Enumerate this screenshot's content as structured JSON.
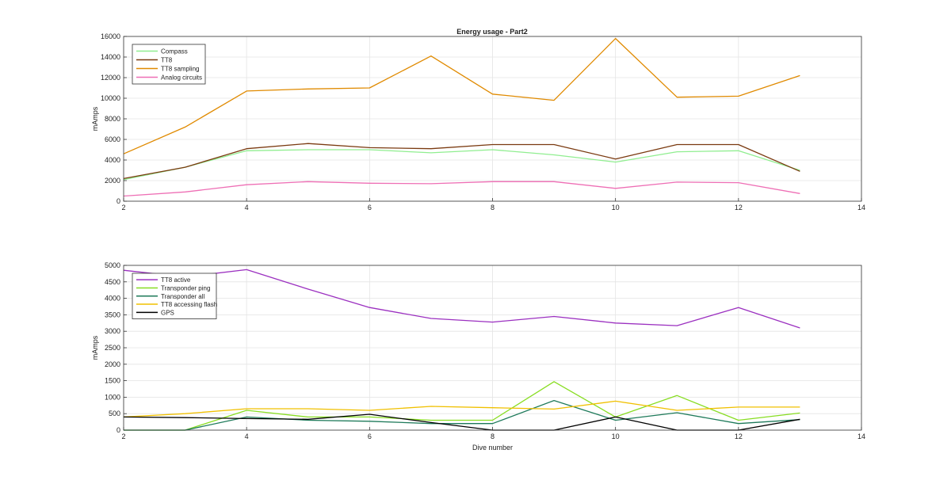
{
  "figure_title": "Energy usage - Part2",
  "chart_data": [
    {
      "type": "line",
      "title": "Energy usage - Part2",
      "xlabel": "",
      "ylabel": "mAmps",
      "xlim": [
        2,
        14
      ],
      "ylim": [
        0,
        16000
      ],
      "x_ticks": [
        "2",
        "4",
        "6",
        "8",
        "10",
        "12",
        "14"
      ],
      "y_ticks": [
        "0",
        "2000",
        "4000",
        "6000",
        "8000",
        "10000",
        "12000",
        "14000",
        "16000"
      ],
      "grid": true,
      "legend_position": "top-left",
      "x": [
        2,
        3,
        4,
        5,
        6,
        7,
        8,
        9,
        10,
        11,
        12,
        13
      ],
      "series": [
        {
          "name": "Compass",
          "color": "#90ee90",
          "values": [
            2100,
            3300,
            4900,
            5000,
            5000,
            4700,
            5000,
            4500,
            3800,
            4800,
            4900,
            3000
          ]
        },
        {
          "name": "TT8",
          "color": "#7a3a10",
          "values": [
            2200,
            3300,
            5100,
            5600,
            5200,
            5100,
            5500,
            5500,
            4100,
            5500,
            5500,
            2900
          ]
        },
        {
          "name": "TT8 sampling",
          "color": "#e08a00",
          "values": [
            4600,
            7200,
            10700,
            10900,
            11000,
            14100,
            10400,
            9800,
            15800,
            10100,
            10200,
            12200
          ]
        },
        {
          "name": "Analog circuits",
          "color": "#ee6fb5",
          "values": [
            500,
            900,
            1600,
            1900,
            1750,
            1700,
            1900,
            1900,
            1250,
            1850,
            1800,
            750
          ]
        }
      ]
    },
    {
      "type": "line",
      "title": "",
      "xlabel": "Dive number",
      "ylabel": "mAmps",
      "xlim": [
        2,
        14
      ],
      "ylim": [
        0,
        5000
      ],
      "x_ticks": [
        "2",
        "4",
        "6",
        "8",
        "10",
        "12",
        "14"
      ],
      "y_ticks": [
        "0",
        "500",
        "1000",
        "1500",
        "2000",
        "2500",
        "3000",
        "3500",
        "4000",
        "4500",
        "5000"
      ],
      "grid": true,
      "legend_position": "top-left",
      "x": [
        2,
        3,
        4,
        5,
        6,
        7,
        8,
        9,
        10,
        11,
        12,
        13
      ],
      "series": [
        {
          "name": "TT8 active",
          "color": "#9b30c0",
          "values": [
            4850,
            4650,
            4870,
            4280,
            3720,
            3390,
            3280,
            3450,
            3250,
            3170,
            3720,
            3100
          ]
        },
        {
          "name": "Transponder ping",
          "color": "#88dd22",
          "values": [
            0,
            0,
            600,
            400,
            400,
            300,
            300,
            1470,
            400,
            1050,
            300,
            520
          ]
        },
        {
          "name": "Transponder all",
          "color": "#1e7a5a",
          "values": [
            0,
            0,
            400,
            300,
            270,
            200,
            200,
            900,
            300,
            530,
            200,
            320
          ]
        },
        {
          "name": "TT8 accessing flash",
          "color": "#f0c000",
          "values": [
            400,
            500,
            650,
            650,
            600,
            720,
            680,
            640,
            880,
            600,
            700,
            700
          ]
        },
        {
          "name": "GPS",
          "color": "#000000",
          "values": [
            400,
            380,
            350,
            330,
            480,
            230,
            0,
            0,
            400,
            0,
            0,
            330
          ]
        }
      ]
    }
  ]
}
